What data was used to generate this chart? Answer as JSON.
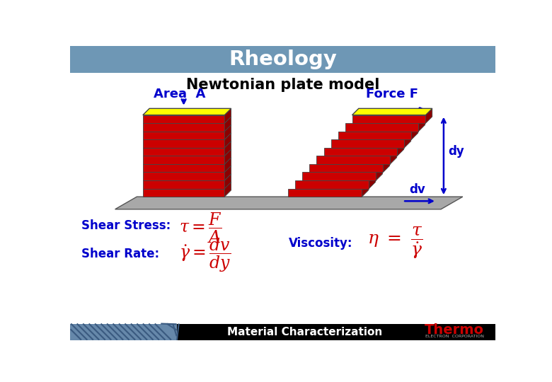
{
  "title": "Rheology",
  "title_bg_color": "#6e97b5",
  "title_text_color": "white",
  "subtitle": "Newtonian plate model",
  "subtitle_color": "black",
  "area_label": "Area  A",
  "force_label": "Force F",
  "label_color": "#0000cc",
  "yellow_color": "#ffff00",
  "red_color": "#cc0000",
  "dark_red_color": "#8b0000",
  "gray_color": "#a8a8a8",
  "shear_stress_label": "Shear Stress:",
  "shear_rate_label": "Shear Rate:",
  "viscosity_label": "Viscosity:",
  "formula_color": "#cc0000",
  "formula_label_color": "#0000cc",
  "bg_color": "white",
  "footer_bg": "black",
  "footer_left_bg": "#6688aa",
  "footer_text": "Material Characterization",
  "footer_text_color": "white",
  "thermo_text_color": "#cc0000",
  "dv_label": "dv",
  "dy_label": "dy",
  "fig_w": 7.8,
  "fig_h": 5.4,
  "dpi": 100
}
